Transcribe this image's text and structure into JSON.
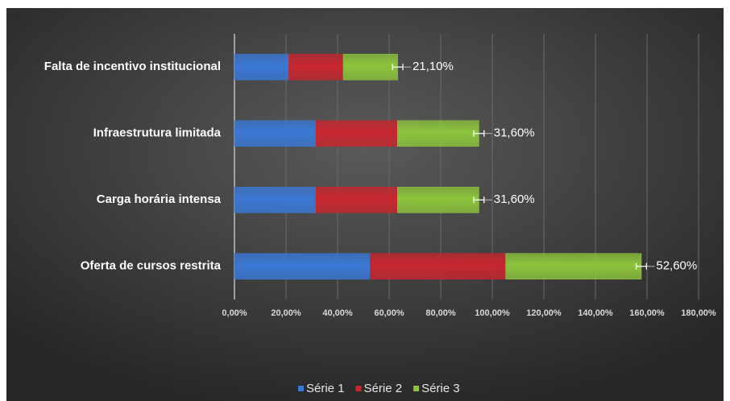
{
  "chart_data": {
    "type": "stacked_bar_horizontal",
    "categories": [
      "Oferta de cursos restrita",
      "Carga horária intensa",
      "Infraestrutura limitada",
      "Falta de incentivo institucional"
    ],
    "series": [
      {
        "name": "Série 1",
        "color": "#3a78d6",
        "values": [
          52.6,
          31.6,
          31.6,
          21.1
        ]
      },
      {
        "name": "Série 2",
        "color": "#c8262e",
        "values": [
          52.6,
          31.6,
          31.6,
          21.1
        ]
      },
      {
        "name": "Série 3",
        "color": "#8cc43c",
        "values": [
          52.6,
          31.6,
          31.6,
          21.1
        ],
        "value_labels": [
          "52,60%",
          "31,60%",
          "31,60%",
          "21,10%"
        ],
        "errors": [
          2,
          2,
          2,
          2
        ]
      }
    ],
    "xlim": [
      0,
      180
    ],
    "xticks": [
      {
        "value": 0,
        "label": "0,00%"
      },
      {
        "value": 20,
        "label": "20,00%"
      },
      {
        "value": 40,
        "label": "40,00%"
      },
      {
        "value": 60,
        "label": "60,00%"
      },
      {
        "value": 80,
        "label": "80,00%"
      },
      {
        "value": 100,
        "label": "100,00%"
      },
      {
        "value": 120,
        "label": "120,00%"
      },
      {
        "value": 140,
        "label": "140,00%"
      },
      {
        "value": 160,
        "label": "160,00%"
      },
      {
        "value": 180,
        "label": "180,00%"
      }
    ],
    "grid": true,
    "legend": "bottom"
  }
}
